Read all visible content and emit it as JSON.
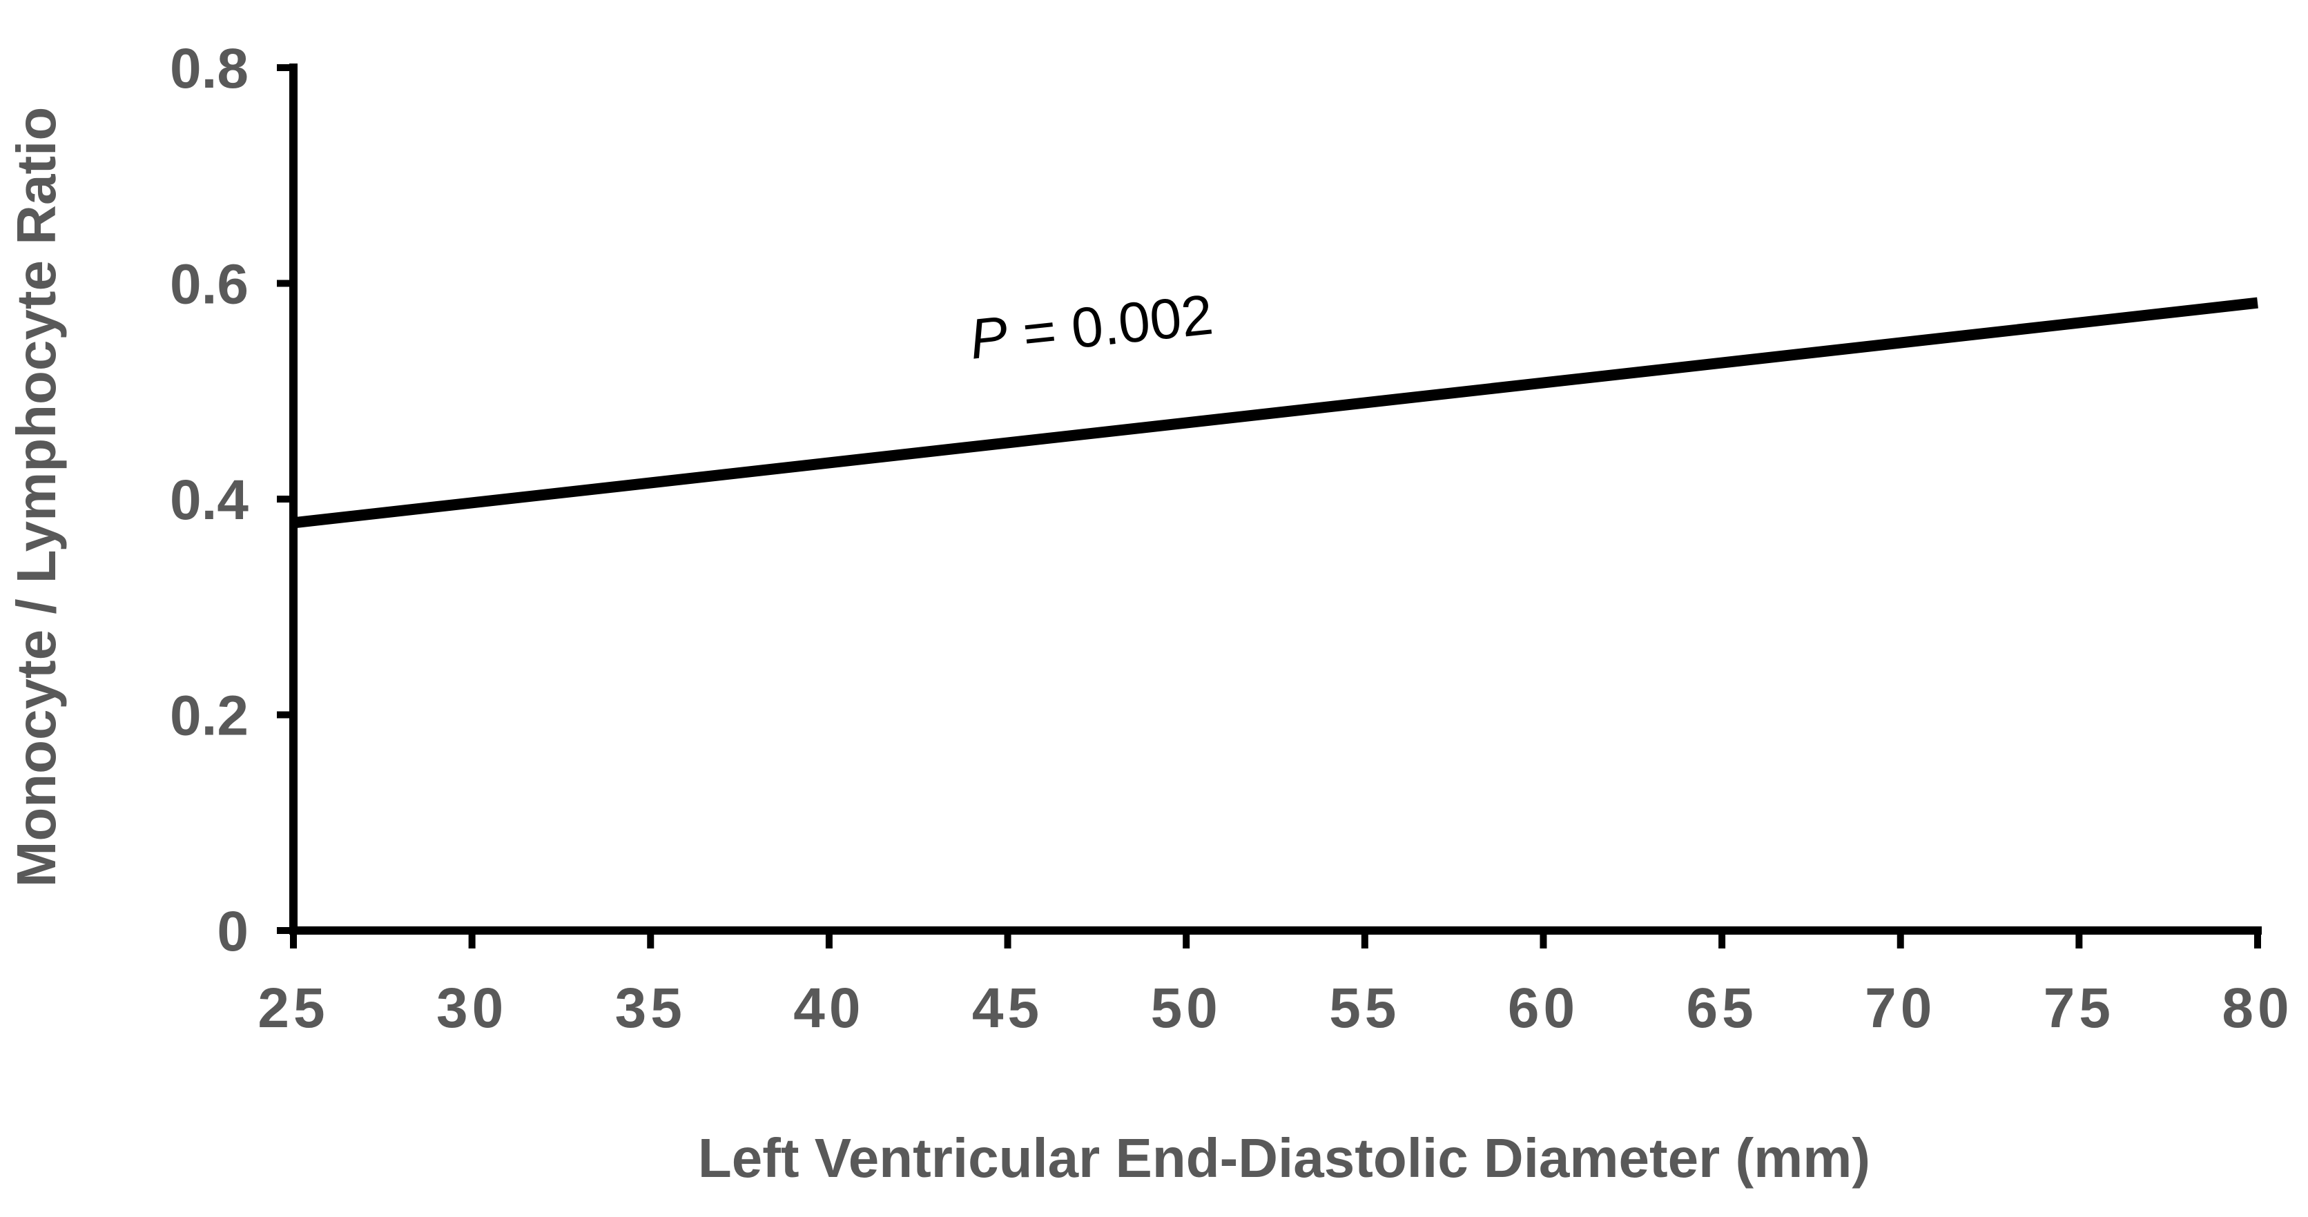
{
  "chart_data": {
    "type": "line",
    "title": "",
    "xlabel": "Left Ventricular End-Diastolic Diameter (mm)",
    "ylabel": "Monocyte / Lymphocyte Ratio",
    "xlim": [
      25,
      80
    ],
    "ylim": [
      0,
      0.8
    ],
    "x_ticks": [
      25,
      30,
      35,
      40,
      45,
      50,
      55,
      60,
      65,
      70,
      75,
      80
    ],
    "y_ticks": [
      {
        "value": 0,
        "label": "0"
      },
      {
        "value": 0.2,
        "label": "0.2"
      },
      {
        "value": 0.4,
        "label": "0.4"
      },
      {
        "value": 0.6,
        "label": "0.6"
      },
      {
        "value": 0.8,
        "label": "0.8"
      }
    ],
    "grid": false,
    "series": [
      {
        "x": [
          25,
          80
        ],
        "y": [
          0.378,
          0.582
        ],
        "color": "#000000"
      }
    ],
    "annotation": {
      "italic": "P",
      "rest": " = 0.002",
      "x": 44,
      "y": 0.53,
      "rotation_deg": -6
    }
  }
}
